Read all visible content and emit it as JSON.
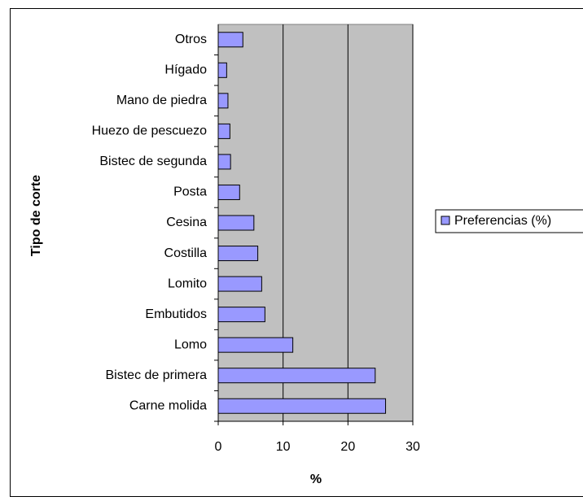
{
  "chart_data": {
    "type": "bar",
    "orientation": "horizontal",
    "x_label": "%",
    "y_label": "Tipo de corte",
    "categories": [
      "Carne molida",
      "Bistec de primera",
      "Lomo",
      "Embutidos",
      "Lomito",
      "Costilla",
      "Cesina",
      "Posta",
      "Bistec de segunda",
      "Huezo de pescuezo",
      "Mano de piedra",
      "Hígado",
      "Otros"
    ],
    "series": [
      {
        "name": "Preferencias (%)",
        "color": "#9999ff",
        "values": [
          25.8,
          24.2,
          11.5,
          7.2,
          6.7,
          6.1,
          5.5,
          3.3,
          1.9,
          1.8,
          1.5,
          1.3,
          3.8
        ]
      }
    ],
    "xlim": [
      0,
      30
    ],
    "xticks": [
      0,
      10,
      20,
      30
    ],
    "grid": true,
    "legend": "right"
  }
}
